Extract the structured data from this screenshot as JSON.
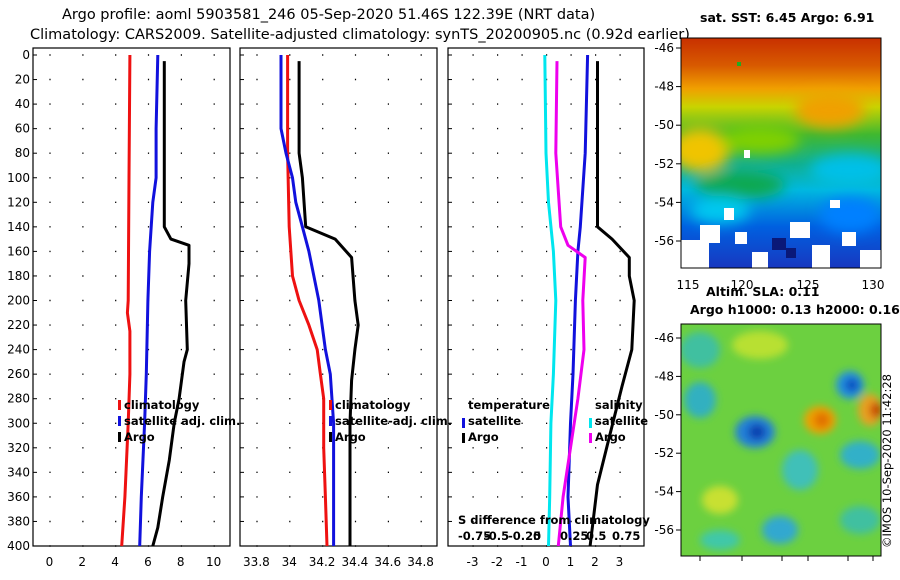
{
  "title": {
    "line1": "Argo profile: aoml 5903581_246 05-Sep-2020 51.46S 122.39E (NRT data)",
    "line2": "Climatology: CARS2009. Satellite-adjusted climatology: synTS_20200905.nc (0.92d earlier)"
  },
  "colors": {
    "red": "#ee1111",
    "blue": "#1111dd",
    "black": "#000000",
    "cyan": "#00e6ee",
    "magenta": "#ee00ee"
  },
  "depth_ticks": [
    "0",
    "20",
    "40",
    "60",
    "80",
    "100",
    "120",
    "140",
    "160",
    "180",
    "200",
    "220",
    "240",
    "260",
    "280",
    "300",
    "320",
    "340",
    "360",
    "380",
    "400"
  ],
  "chart_data": [
    {
      "type": "line",
      "panel": "temperature",
      "ylabel": "depth",
      "ylim": [
        0,
        400
      ],
      "xlim": [
        -1,
        11
      ],
      "xticks": [
        "0",
        "2",
        "4",
        "6",
        "8",
        "10"
      ],
      "legend": [
        "climatology",
        "satellite adj. clim.",
        "Argo"
      ],
      "series": [
        {
          "name": "climatology",
          "color": "red",
          "points": [
            [
              4.9,
              0
            ],
            [
              4.85,
              100
            ],
            [
              4.8,
              200
            ],
            [
              4.75,
              210
            ],
            [
              4.9,
              225
            ],
            [
              4.9,
              260
            ],
            [
              4.8,
              300
            ],
            [
              4.6,
              360
            ],
            [
              4.4,
              400
            ]
          ]
        },
        {
          "name": "satellite adj. clim.",
          "color": "blue",
          "points": [
            [
              6.6,
              0
            ],
            [
              6.5,
              60
            ],
            [
              6.5,
              100
            ],
            [
              6.3,
              120
            ],
            [
              6.2,
              140
            ],
            [
              6.1,
              160
            ],
            [
              6.0,
              200
            ],
            [
              5.9,
              260
            ],
            [
              5.8,
              300
            ],
            [
              5.6,
              360
            ],
            [
              5.5,
              400
            ]
          ]
        },
        {
          "name": "Argo",
          "color": "black",
          "points": [
            [
              7.0,
              5
            ],
            [
              7.0,
              140
            ],
            [
              7.4,
              150
            ],
            [
              8.5,
              155
            ],
            [
              8.5,
              170
            ],
            [
              8.3,
              200
            ],
            [
              8.4,
              240
            ],
            [
              8.2,
              250
            ],
            [
              7.9,
              280
            ],
            [
              7.6,
              300
            ],
            [
              7.3,
              330
            ],
            [
              6.9,
              360
            ],
            [
              6.6,
              385
            ],
            [
              6.3,
              400
            ]
          ]
        }
      ]
    },
    {
      "type": "line",
      "panel": "salinity",
      "ylabel": "depth",
      "ylim": [
        0,
        400
      ],
      "xlim": [
        33.7,
        34.9
      ],
      "xticks": [
        "33.8",
        "34",
        "34.2",
        "34.4",
        "34.6",
        "34.8"
      ],
      "legend": [
        "climatology",
        "satellite-adj. clim.",
        "Argo"
      ],
      "series": [
        {
          "name": "climatology",
          "color": "red",
          "points": [
            [
              33.99,
              0
            ],
            [
              33.99,
              80
            ],
            [
              34.0,
              140
            ],
            [
              34.02,
              180
            ],
            [
              34.06,
              200
            ],
            [
              34.12,
              220
            ],
            [
              34.17,
              240
            ],
            [
              34.19,
              260
            ],
            [
              34.21,
              280
            ],
            [
              34.21,
              320
            ],
            [
              34.22,
              360
            ],
            [
              34.23,
              400
            ]
          ]
        },
        {
          "name": "satellite-adj. clim.",
          "color": "blue",
          "points": [
            [
              33.95,
              0
            ],
            [
              33.95,
              60
            ],
            [
              33.98,
              80
            ],
            [
              34.02,
              100
            ],
            [
              34.04,
              120
            ],
            [
              34.08,
              140
            ],
            [
              34.12,
              160
            ],
            [
              34.18,
              200
            ],
            [
              34.22,
              240
            ],
            [
              34.25,
              260
            ],
            [
              34.27,
              300
            ],
            [
              34.27,
              400
            ]
          ]
        },
        {
          "name": "Argo",
          "color": "black",
          "points": [
            [
              34.06,
              5
            ],
            [
              34.06,
              80
            ],
            [
              34.08,
              100
            ],
            [
              34.1,
              140
            ],
            [
              34.28,
              150
            ],
            [
              34.38,
              165
            ],
            [
              34.4,
              200
            ],
            [
              34.42,
              220
            ],
            [
              34.4,
              240
            ],
            [
              34.38,
              265
            ],
            [
              34.37,
              300
            ],
            [
              34.37,
              400
            ]
          ]
        }
      ]
    },
    {
      "type": "line",
      "panel": "difference",
      "ylabel": "depth",
      "ylim": [
        0,
        400
      ],
      "xlim": [
        -4,
        4
      ],
      "xticks": [
        "-3",
        "-2",
        "-1",
        "0",
        "1",
        "2",
        "3"
      ],
      "legend_temperature": [
        "temperature",
        "satellite",
        "Argo"
      ],
      "legend_salinity": [
        "salinity",
        "satellite",
        "Argo"
      ],
      "caption": "S difference from climatology",
      "caption_ticks": [
        "-0.75",
        "-0.5",
        "-0.25",
        "0",
        "0.25",
        "0.5",
        "0.75"
      ],
      "series": [
        {
          "name": "temperature satellite",
          "color": "blue",
          "points": [
            [
              1.7,
              0
            ],
            [
              1.6,
              80
            ],
            [
              1.4,
              140
            ],
            [
              1.3,
              160
            ],
            [
              1.2,
              200
            ],
            [
              1.1,
              260
            ],
            [
              1.0,
              300
            ],
            [
              0.9,
              360
            ],
            [
              1.0,
              400
            ]
          ]
        },
        {
          "name": "temperature Argo",
          "color": "black",
          "points": [
            [
              2.1,
              5
            ],
            [
              2.1,
              140
            ],
            [
              2.7,
              150
            ],
            [
              3.4,
              165
            ],
            [
              3.4,
              180
            ],
            [
              3.6,
              200
            ],
            [
              3.5,
              240
            ],
            [
              3.1,
              270
            ],
            [
              2.6,
              310
            ],
            [
              2.1,
              350
            ],
            [
              1.8,
              400
            ]
          ]
        },
        {
          "name": "salinity satellite",
          "color": "cyan",
          "points": [
            [
              -0.05,
              0
            ],
            [
              0.0,
              80
            ],
            [
              0.1,
              120
            ],
            [
              0.3,
              160
            ],
            [
              0.4,
              200
            ],
            [
              0.3,
              260
            ],
            [
              0.2,
              300
            ],
            [
              0.15,
              360
            ],
            [
              0.1,
              400
            ]
          ]
        },
        {
          "name": "salinity Argo",
          "color": "magenta",
          "points": [
            [
              0.45,
              5
            ],
            [
              0.4,
              80
            ],
            [
              0.6,
              140
            ],
            [
              0.9,
              155
            ],
            [
              1.6,
              165
            ],
            [
              1.5,
              200
            ],
            [
              1.55,
              240
            ],
            [
              1.3,
              280
            ],
            [
              1.0,
              320
            ],
            [
              0.7,
              360
            ],
            [
              0.5,
              400
            ]
          ]
        }
      ]
    },
    {
      "type": "heatmap",
      "panel": "sst_map",
      "title": "sat. SST: 6.45 Argo: 6.91",
      "xticks": [
        "115",
        "120",
        "125",
        "130"
      ],
      "yticks": [
        "-46",
        "-48",
        "-50",
        "-52",
        "-54",
        "-56"
      ]
    },
    {
      "type": "heatmap",
      "panel": "sla_map",
      "title_line1": "Altim. SLA: 0.11",
      "title_line2": "Argo h1000: 0.13 h2000: 0.16",
      "yticks": [
        "-46",
        "-48",
        "-50",
        "-52",
        "-54",
        "-56"
      ]
    }
  ],
  "watermark": "©IMOS 10-Sep-2020 11:42:28"
}
